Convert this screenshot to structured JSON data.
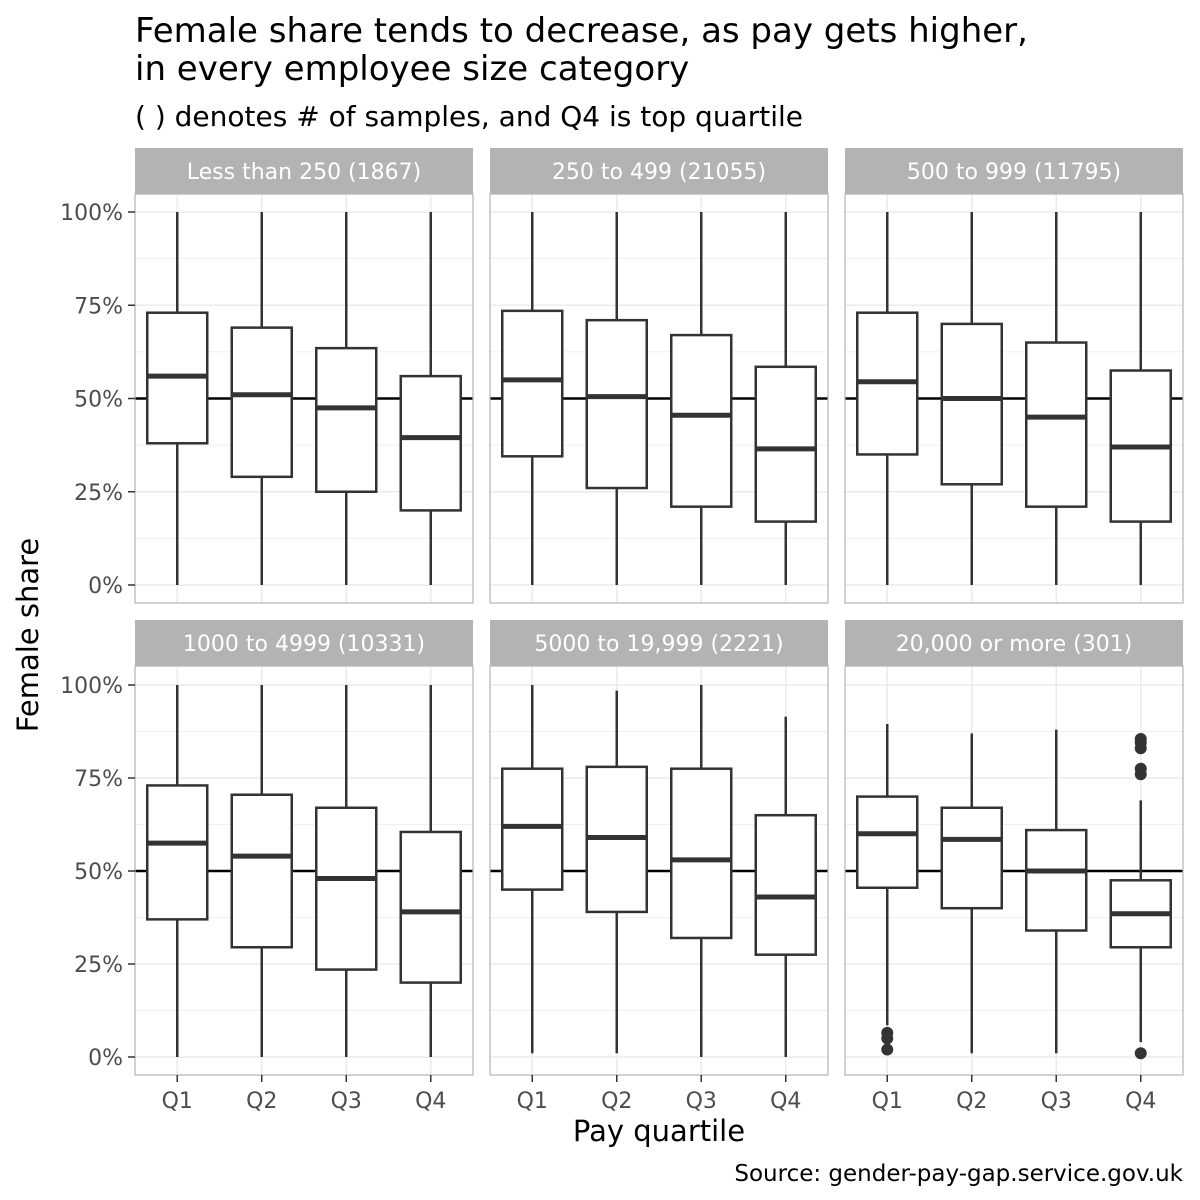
{
  "chart_data": {
    "type": "boxplot",
    "title": "Female share tends to decrease, as pay gets higher,\nin every employee size category",
    "subtitle": "( ) denotes # of samples, and Q4 is top quartile",
    "xlabel": "Pay quartile",
    "ylabel": "Female share",
    "caption": "Source: gender-pay-gap.service.gov.uk",
    "categories": [
      "Q1",
      "Q2",
      "Q3",
      "Q4"
    ],
    "y_ticks": [
      "0%",
      "25%",
      "50%",
      "75%",
      "100%"
    ],
    "ylim": [
      0,
      1.05
    ],
    "reference_line": 0.5,
    "grid": true,
    "panels": [
      {
        "label": "Less than 250 (1867)",
        "boxes": [
          {
            "q": "Q1",
            "min": 0.0,
            "q1": 0.38,
            "median": 0.56,
            "q3": 0.73,
            "max": 1.0,
            "outliers": []
          },
          {
            "q": "Q2",
            "min": 0.0,
            "q1": 0.29,
            "median": 0.51,
            "q3": 0.69,
            "max": 1.0,
            "outliers": []
          },
          {
            "q": "Q3",
            "min": 0.0,
            "q1": 0.25,
            "median": 0.475,
            "q3": 0.635,
            "max": 1.0,
            "outliers": []
          },
          {
            "q": "Q4",
            "min": 0.0,
            "q1": 0.2,
            "median": 0.395,
            "q3": 0.56,
            "max": 1.0,
            "outliers": []
          }
        ]
      },
      {
        "label": "250 to 499 (21055)",
        "boxes": [
          {
            "q": "Q1",
            "min": 0.0,
            "q1": 0.345,
            "median": 0.55,
            "q3": 0.735,
            "max": 1.0,
            "outliers": []
          },
          {
            "q": "Q2",
            "min": 0.0,
            "q1": 0.26,
            "median": 0.505,
            "q3": 0.71,
            "max": 1.0,
            "outliers": []
          },
          {
            "q": "Q3",
            "min": 0.0,
            "q1": 0.21,
            "median": 0.455,
            "q3": 0.67,
            "max": 1.0,
            "outliers": []
          },
          {
            "q": "Q4",
            "min": 0.0,
            "q1": 0.17,
            "median": 0.365,
            "q3": 0.585,
            "max": 1.0,
            "outliers": []
          }
        ]
      },
      {
        "label": "500 to 999 (11795)",
        "boxes": [
          {
            "q": "Q1",
            "min": 0.0,
            "q1": 0.35,
            "median": 0.545,
            "q3": 0.73,
            "max": 1.0,
            "outliers": []
          },
          {
            "q": "Q2",
            "min": 0.0,
            "q1": 0.27,
            "median": 0.5,
            "q3": 0.7,
            "max": 1.0,
            "outliers": []
          },
          {
            "q": "Q3",
            "min": 0.0,
            "q1": 0.21,
            "median": 0.45,
            "q3": 0.65,
            "max": 1.0,
            "outliers": []
          },
          {
            "q": "Q4",
            "min": 0.0,
            "q1": 0.17,
            "median": 0.37,
            "q3": 0.575,
            "max": 1.0,
            "outliers": []
          }
        ]
      },
      {
        "label": "1000 to 4999 (10331)",
        "boxes": [
          {
            "q": "Q1",
            "min": 0.0,
            "q1": 0.37,
            "median": 0.575,
            "q3": 0.73,
            "max": 1.0,
            "outliers": []
          },
          {
            "q": "Q2",
            "min": 0.0,
            "q1": 0.295,
            "median": 0.54,
            "q3": 0.705,
            "max": 1.0,
            "outliers": []
          },
          {
            "q": "Q3",
            "min": 0.0,
            "q1": 0.235,
            "median": 0.48,
            "q3": 0.67,
            "max": 1.0,
            "outliers": []
          },
          {
            "q": "Q4",
            "min": 0.0,
            "q1": 0.2,
            "median": 0.39,
            "q3": 0.605,
            "max": 1.0,
            "outliers": []
          }
        ]
      },
      {
        "label": "5000 to 19,999 (2221)",
        "boxes": [
          {
            "q": "Q1",
            "min": 0.01,
            "q1": 0.45,
            "median": 0.62,
            "q3": 0.775,
            "max": 1.0,
            "outliers": []
          },
          {
            "q": "Q2",
            "min": 0.01,
            "q1": 0.39,
            "median": 0.59,
            "q3": 0.78,
            "max": 0.985,
            "outliers": []
          },
          {
            "q": "Q3",
            "min": 0.0,
            "q1": 0.32,
            "median": 0.53,
            "q3": 0.775,
            "max": 1.0,
            "outliers": []
          },
          {
            "q": "Q4",
            "min": 0.0,
            "q1": 0.275,
            "median": 0.43,
            "q3": 0.65,
            "max": 0.915,
            "outliers": []
          }
        ]
      },
      {
        "label": "20,000 or more (301)",
        "boxes": [
          {
            "q": "Q1",
            "min": 0.085,
            "q1": 0.455,
            "median": 0.6,
            "q3": 0.7,
            "max": 0.895,
            "outliers": [
              0.065,
              0.05,
              0.02
            ]
          },
          {
            "q": "Q2",
            "min": 0.01,
            "q1": 0.4,
            "median": 0.585,
            "q3": 0.67,
            "max": 0.87,
            "outliers": []
          },
          {
            "q": "Q3",
            "min": 0.01,
            "q1": 0.34,
            "median": 0.5,
            "q3": 0.61,
            "max": 0.88,
            "outliers": []
          },
          {
            "q": "Q4",
            "min": 0.04,
            "q1": 0.295,
            "median": 0.385,
            "q3": 0.475,
            "max": 0.69,
            "outliers": [
              0.855,
              0.845,
              0.83,
              0.775,
              0.76,
              0.01
            ]
          }
        ]
      }
    ]
  }
}
